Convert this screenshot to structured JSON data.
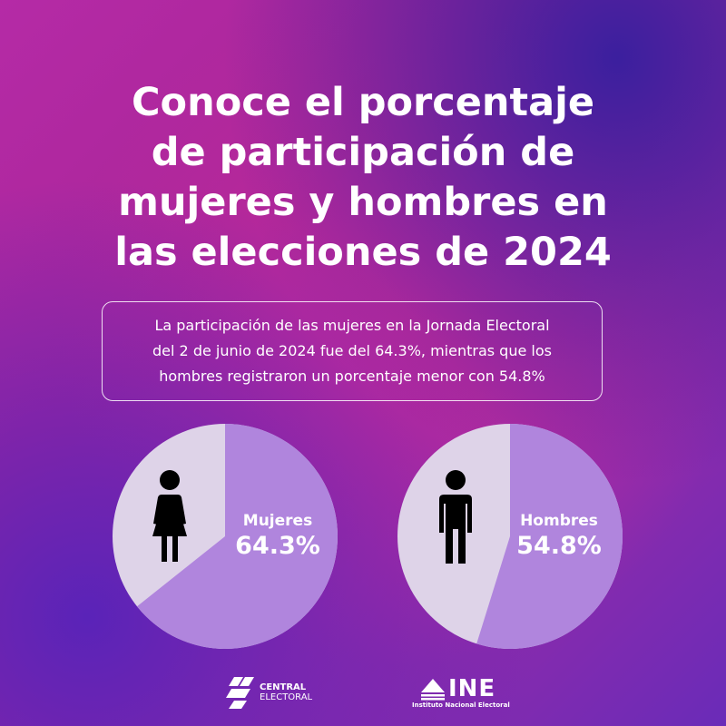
{
  "title_lines": [
    "Conoce el porcentaje",
    "de participación de",
    "mujeres y hombres en",
    "las elecciones de 2024"
  ],
  "description_lines": [
    "La participación de las mujeres en la Jornada Electoral",
    "del 2 de junio de 2024 fue del 64.3%, mientras que los",
    "hombres registraron un porcentaje menor con 54.8%"
  ],
  "colors": {
    "slice_main": "#b085dd",
    "slice_rest": "#ded3e8",
    "icon": "#000000",
    "text": "#ffffff"
  },
  "chart_data": [
    {
      "type": "pie",
      "icon": "woman-icon",
      "slices": [
        {
          "name": "Mujeres",
          "value": 64.3,
          "label": "64.3%"
        },
        {
          "name": "",
          "value": 35.7
        }
      ]
    },
    {
      "type": "pie",
      "icon": "man-icon",
      "slices": [
        {
          "name": "Hombres",
          "value": 54.8,
          "label": "54.8%"
        },
        {
          "name": "",
          "value": 45.2
        }
      ]
    }
  ],
  "logos": {
    "central": {
      "line1": "CENTRAL",
      "line2": "ELECTORAL"
    },
    "ine": {
      "name": "INE",
      "subtitle": "Instituto Nacional Electoral"
    }
  }
}
